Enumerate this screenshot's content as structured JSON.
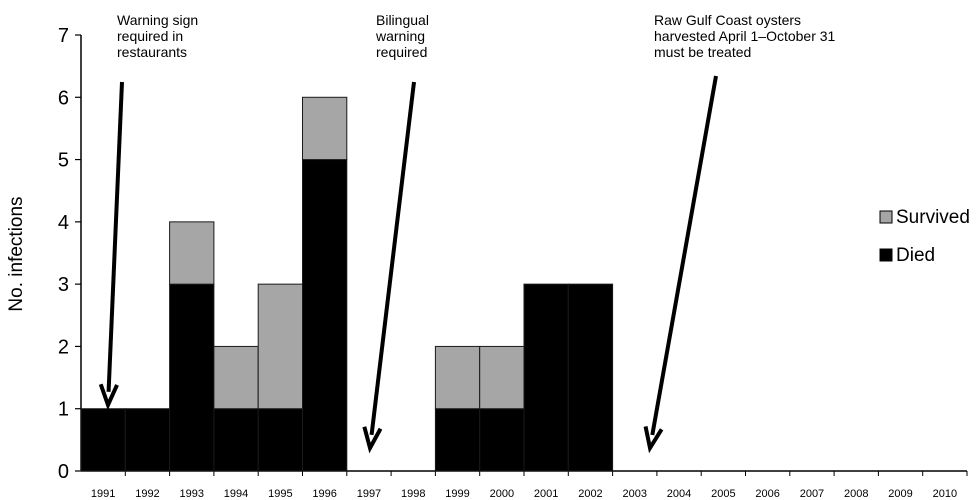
{
  "chart_data": {
    "type": "bar",
    "stacked": true,
    "ylabel": "No. infections",
    "xlabel": "",
    "ylim": [
      0,
      7
    ],
    "yticks": [
      0,
      1,
      2,
      3,
      4,
      5,
      6,
      7
    ],
    "categories": [
      "1991",
      "1992",
      "1993",
      "1994",
      "1995",
      "1996",
      "1997",
      "1998",
      "1999",
      "2000",
      "2001",
      "2002",
      "2003",
      "2004",
      "2005",
      "2006",
      "2007",
      "2008",
      "2009",
      "2010"
    ],
    "series": [
      {
        "name": "Died",
        "color": "#000000",
        "values": [
          1,
          1,
          3,
          1,
          1,
          5,
          0,
          0,
          1,
          1,
          3,
          3,
          0,
          0,
          0,
          0,
          0,
          0,
          0,
          0
        ]
      },
      {
        "name": "Survived",
        "color": "#a6a6a6",
        "values": [
          0,
          0,
          1,
          1,
          2,
          1,
          0,
          0,
          1,
          1,
          0,
          0,
          0,
          0,
          0,
          0,
          0,
          0,
          0,
          0
        ]
      }
    ],
    "legend": {
      "position": "right",
      "items": [
        "Survived",
        "Died"
      ]
    },
    "grid": false,
    "annotations": [
      {
        "lines": [
          "Warning sign",
          "required in",
          "restaurants"
        ],
        "points_to": "1991"
      },
      {
        "lines": [
          "Bilingual",
          "warning",
          "required"
        ],
        "points_to": "1997"
      },
      {
        "lines": [
          "Raw Gulf Coast oysters",
          "harvested April 1–October 31",
          "must be treated"
        ],
        "points_to": "2003"
      }
    ]
  }
}
